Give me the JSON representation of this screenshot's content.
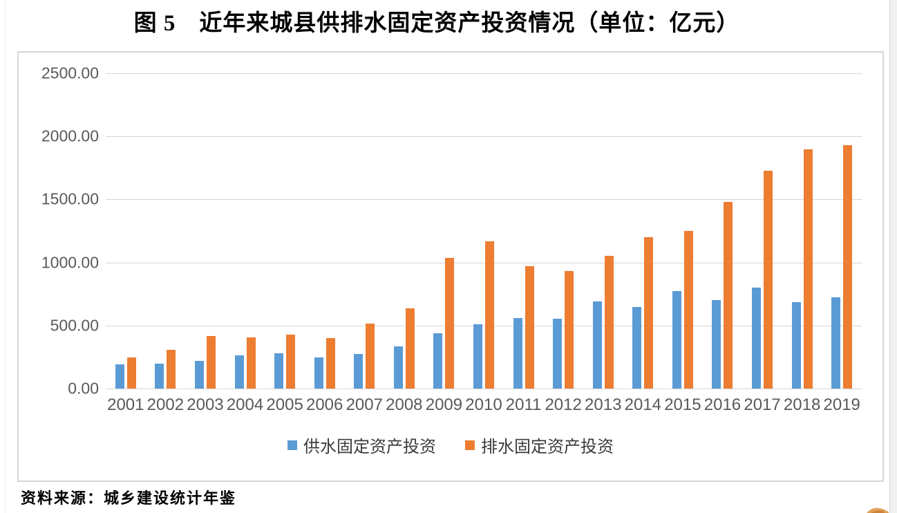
{
  "page": {
    "title": "图 5　近年来城县供排水固定资产投资情况（单位：亿元）",
    "source_note": "资料来源：城乡建设统计年鉴"
  },
  "colors": {
    "series_water_supply": "#5B9BD5",
    "series_drainage": "#ED7D31",
    "gridline": "#D6D6D6",
    "axis_text": "#595959",
    "chart_border": "#D5D5D5",
    "corner_blob": "#DD8F3C"
  },
  "chart_data": {
    "type": "bar",
    "title": "图 5　近年来城县供排水固定资产投资情况（单位：亿元）",
    "unit": "亿元",
    "categories": [
      "2001",
      "2002",
      "2003",
      "2004",
      "2005",
      "2006",
      "2007",
      "2008",
      "2009",
      "2010",
      "2011",
      "2012",
      "2013",
      "2014",
      "2015",
      "2016",
      "2017",
      "2018",
      "2019"
    ],
    "series": [
      {
        "name": "供水固定资产投资",
        "color": "#5B9BD5",
        "values": [
          190,
          200,
          220,
          265,
          280,
          245,
          275,
          335,
          440,
          510,
          560,
          552,
          690,
          645,
          775,
          700,
          800,
          685,
          725
        ]
      },
      {
        "name": "排水固定资产投资",
        "color": "#ED7D31",
        "values": [
          245,
          305,
          415,
          405,
          425,
          400,
          515,
          635,
          1035,
          1170,
          970,
          930,
          1055,
          1200,
          1250,
          1480,
          1725,
          1895,
          1930
        ]
      }
    ],
    "xlabel": "",
    "ylabel": "",
    "ylim": [
      0,
      2500
    ],
    "yticks": [
      "2500.00",
      "2000.00",
      "1500.00",
      "1000.00",
      "500.00",
      "0.00"
    ],
    "grid": true,
    "legend_position": "bottom"
  }
}
